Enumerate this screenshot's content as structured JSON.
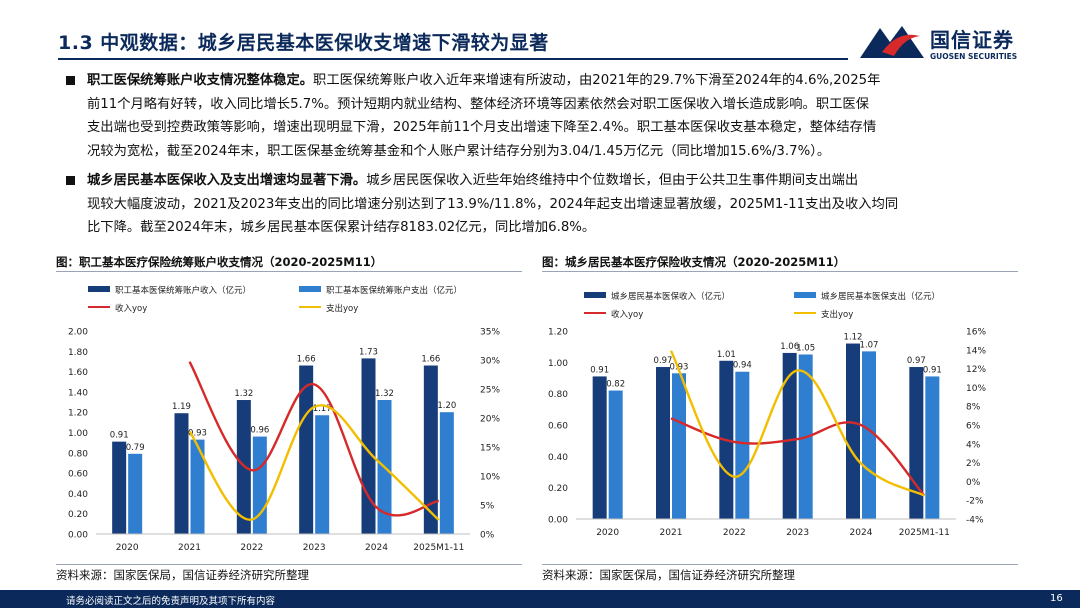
{
  "header": {
    "title": "1.3 中观数据：城乡居民基本医保收支增速下滑较为显著",
    "logo_cn": "国信证券",
    "logo_en": "GUOSEN SECURITIES"
  },
  "paragraphs": [
    {
      "lead": "职工医保统筹账户收支情况整体稳定。",
      "lines": [
        "职工医保统筹账户收入近年来增速有所波动，由2021年的29.7%下滑至2024年的4.6%,2025年",
        "前11个月略有好转，收入同比增长5.7%。预计短期内就业结构、整体经济环境等因素依然会对职工医保收入增长造成影响。职工医保",
        "支出端也受到控费政策等影响，增速出现明显下滑，2025年前11个月支出增速下降至2.4%。职工基本医保收支基本稳定，整体结存情",
        "况较为宽松，截至2024年末，职工医保基金统筹基金和个人账户累计结存分别为3.04/1.45万亿元（同比增加15.6%/3.7%）。"
      ]
    },
    {
      "lead": "城乡居民基本医保收入及支出增速均显著下滑。",
      "lines": [
        "城乡居民医保收入近些年始终维持中个位数增长，但由于公共卫生事件期间支出端出",
        "现较大幅度波动，2021及2023年支出的同比增速分别达到了13.9%/11.8%，2024年起支出增速显著放缓，2025M1-11支出及收入均同",
        "比下降。截至2024年末，城乡居民基本医保累计结存8183.02亿元，同比增加6.8%。"
      ]
    }
  ],
  "figures": [
    {
      "fig_title": "图：职工基本医疗保险统筹账户收支情况（2020-2025M11）",
      "source": "资料来源：国家医保局，国信证券经济研究所整理"
    },
    {
      "fig_title": "图：城乡居民基本医疗保险收支情况（2020-2025M11）",
      "source": "资料来源：国家医保局，国信证券经济研究所整理"
    }
  ],
  "chart_data": [
    {
      "type": "bar",
      "title": "职工基本医疗保险统筹账户收支情况（2020-2025M11）",
      "categories": [
        "2020",
        "2021",
        "2022",
        "2023",
        "2024",
        "2025M1-11"
      ],
      "series": [
        {
          "name": "职工基本医保统筹账户收入（亿元）",
          "kind": "bar",
          "axis": "left",
          "color": "#163d7a",
          "values": [
            0.91,
            1.19,
            1.32,
            1.66,
            1.73,
            1.66
          ],
          "labels": [
            "0.91",
            "1.19",
            "1.32",
            "1.66",
            "1.73",
            "1.66"
          ]
        },
        {
          "name": "职工基本医保统筹账户支出（亿元）",
          "kind": "bar",
          "axis": "left",
          "color": "#2f7ed0",
          "values": [
            0.79,
            0.93,
            0.96,
            1.17,
            1.32,
            1.2
          ],
          "labels": [
            "0.79",
            "0.93",
            "0.96",
            "1.17",
            "1.32",
            "1.20"
          ]
        },
        {
          "name": "收入yoy",
          "kind": "line",
          "axis": "right",
          "color": "#d62a2a",
          "values": [
            null,
            29.7,
            11.0,
            25.8,
            4.6,
            5.7
          ]
        },
        {
          "name": "支出yoy",
          "kind": "line",
          "axis": "right",
          "color": "#f2be00",
          "values": [
            null,
            17.7,
            2.5,
            21.9,
            12.8,
            2.4
          ]
        }
      ],
      "left_axis": {
        "min": 0,
        "max": 2.0,
        "step": 0.2,
        "ticks": [
          "0.00",
          "0.20",
          "0.40",
          "0.60",
          "0.80",
          "1.00",
          "1.20",
          "1.40",
          "1.60",
          "1.80",
          "2.00"
        ]
      },
      "right_axis": {
        "min": 0,
        "max": 35,
        "step": 5,
        "ticks": [
          "0%",
          "5%",
          "10%",
          "15%",
          "20%",
          "25%",
          "30%",
          "35%"
        ]
      },
      "legend_position": "top"
    },
    {
      "type": "bar",
      "title": "城乡居民基本医疗保险收支情况（2020-2025M11）",
      "categories": [
        "2020",
        "2021",
        "2022",
        "2023",
        "2024",
        "2025M1-11"
      ],
      "series": [
        {
          "name": "城乡居民基本医保收入（亿元）",
          "kind": "bar",
          "axis": "left",
          "color": "#163d7a",
          "values": [
            0.91,
            0.97,
            1.01,
            1.06,
            1.12,
            0.97
          ],
          "labels": [
            "0.91",
            "0.97",
            "1.01",
            "1.06",
            "1.12",
            "0.97"
          ]
        },
        {
          "name": "城乡居民基本医保支出（亿元）",
          "kind": "bar",
          "axis": "left",
          "color": "#2f7ed0",
          "values": [
            0.82,
            0.93,
            0.94,
            1.05,
            1.07,
            0.91
          ],
          "labels": [
            "0.82",
            "0.93",
            "0.94",
            "1.05",
            "1.07",
            "0.91"
          ]
        },
        {
          "name": "收入yoy",
          "kind": "line",
          "axis": "right",
          "color": "#d62a2a",
          "values": [
            null,
            6.7,
            4.2,
            4.5,
            6.0,
            -1.5
          ]
        },
        {
          "name": "支出yoy",
          "kind": "line",
          "axis": "right",
          "color": "#f2be00",
          "values": [
            null,
            13.9,
            0.5,
            11.8,
            1.9,
            -1.5
          ]
        }
      ],
      "left_axis": {
        "min": 0,
        "max": 1.2,
        "step": 0.2,
        "ticks": [
          "0.00",
          "0.20",
          "0.40",
          "0.60",
          "0.80",
          "1.00",
          "1.20"
        ]
      },
      "right_axis": {
        "min": -4,
        "max": 16,
        "step": 2,
        "ticks": [
          "-4%",
          "-2%",
          "0%",
          "2%",
          "4%",
          "6%",
          "8%",
          "10%",
          "12%",
          "14%",
          "16%"
        ]
      },
      "legend_position": "top"
    }
  ],
  "footer": {
    "disclaimer": "请务必阅读正文之后的免责声明及其项下所有内容",
    "page_number": "16"
  }
}
